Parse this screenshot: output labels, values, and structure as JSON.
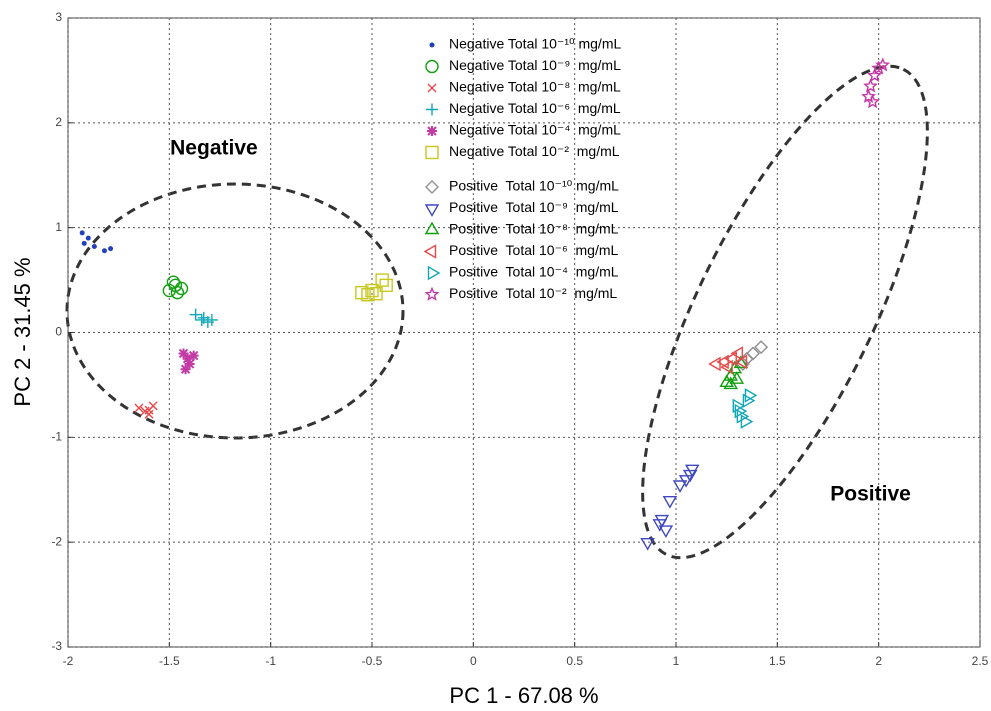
{
  "chart_data": {
    "type": "scatter",
    "xlabel": "PC 1 -  67.08 %",
    "ylabel": "PC 2 - 31.45 %",
    "xlim": [
      -2,
      2.5
    ],
    "xticks": [
      -2,
      -1.5,
      -1,
      -0.5,
      0,
      0.5,
      1,
      1.5,
      2,
      2.5
    ],
    "ylim": [
      -3,
      3
    ],
    "yticks": [
      -3,
      -2,
      -1,
      0,
      1,
      2,
      3
    ],
    "grid": true,
    "annotations": [
      {
        "text": "Negative",
        "x": -1.28,
        "y": 1.75
      },
      {
        "text": "Positive",
        "x": 1.96,
        "y": -1.55
      }
    ],
    "series": [
      {
        "name": "Negative Total 10⁻¹⁰ mg/mL",
        "color": "#2040c0",
        "marker": "dot",
        "x": [
          -1.93,
          -1.9,
          -1.87,
          -1.82,
          -1.79,
          -1.92
        ],
        "y": [
          0.95,
          0.9,
          0.82,
          0.78,
          0.8,
          0.85
        ]
      },
      {
        "name": "Negative Total 10⁻⁹  mg/mL",
        "color": "#10a010",
        "marker": "circle",
        "x": [
          -1.5,
          -1.47,
          -1.46,
          -1.44,
          -1.48
        ],
        "y": [
          0.4,
          0.45,
          0.38,
          0.42,
          0.48
        ]
      },
      {
        "name": "Negative Total 10⁻⁸  mg/mL",
        "color": "#e84848",
        "marker": "x",
        "x": [
          -1.65,
          -1.62,
          -1.6,
          -1.58,
          -1.6
        ],
        "y": [
          -0.72,
          -0.75,
          -0.78,
          -0.7,
          -0.74
        ]
      },
      {
        "name": "Negative Total 10⁻⁶  mg/mL",
        "color": "#10a8b8",
        "marker": "plus",
        "x": [
          -1.37,
          -1.34,
          -1.31,
          -1.33,
          -1.29
        ],
        "y": [
          0.17,
          0.12,
          0.1,
          0.14,
          0.12
        ]
      },
      {
        "name": "Negative Total 10⁻⁴  mg/mL",
        "color": "#c43aa4",
        "marker": "star",
        "x": [
          -1.43,
          -1.41,
          -1.4,
          -1.38,
          -1.42
        ],
        "y": [
          -0.2,
          -0.25,
          -0.3,
          -0.22,
          -0.35
        ]
      },
      {
        "name": "Negative Total 10⁻²  mg/mL",
        "color": "#c8c820",
        "marker": "square",
        "x": [
          -0.55,
          -0.52,
          -0.5,
          -0.45,
          -0.43,
          -0.48
        ],
        "y": [
          0.38,
          0.36,
          0.4,
          0.5,
          0.45,
          0.37
        ]
      },
      {
        "name": "Positive  Total 10⁻¹⁰ mg/mL",
        "color": "#909090",
        "marker": "diamond",
        "x": [
          1.35,
          1.38,
          1.42,
          1.33
        ],
        "y": [
          -0.25,
          -0.2,
          -0.14,
          -0.3
        ]
      },
      {
        "name": "Positive  Total 10⁻⁹  mg/mL",
        "color": "#4048c0",
        "marker": "tri-down",
        "x": [
          0.86,
          0.92,
          0.95,
          0.93,
          0.97,
          1.02,
          1.05,
          1.08,
          1.07
        ],
        "y": [
          -2.0,
          -1.82,
          -1.88,
          -1.78,
          -1.6,
          -1.45,
          -1.4,
          -1.3,
          -1.35
        ]
      },
      {
        "name": "Positive  Total 10⁻⁸  mg/mL",
        "color": "#10a010",
        "marker": "tri-up",
        "x": [
          1.25,
          1.27,
          1.3,
          1.29,
          1.32,
          1.27
        ],
        "y": [
          -0.48,
          -0.42,
          -0.45,
          -0.35,
          -0.3,
          -0.5
        ]
      },
      {
        "name": "Positive  Total 10⁻⁶  mg/mL",
        "color": "#e84848",
        "marker": "tri-left",
        "x": [
          1.2,
          1.24,
          1.28,
          1.31,
          1.33,
          1.26
        ],
        "y": [
          -0.3,
          -0.28,
          -0.25,
          -0.2,
          -0.28,
          -0.33
        ]
      },
      {
        "name": "Positive  Total 10⁻⁴  mg/mL",
        "color": "#10a8b8",
        "marker": "tri-right",
        "x": [
          1.3,
          1.32,
          1.34,
          1.36,
          1.35,
          1.31
        ],
        "y": [
          -0.7,
          -0.8,
          -0.85,
          -0.6,
          -0.65,
          -0.75
        ]
      },
      {
        "name": "Positive  Total 10⁻²  mg/mL",
        "color": "#c43aa4",
        "marker": "pentagram",
        "x": [
          1.95,
          1.96,
          1.98,
          2.0,
          2.02,
          1.97
        ],
        "y": [
          2.25,
          2.35,
          2.45,
          2.52,
          2.55,
          2.2
        ]
      }
    ]
  }
}
